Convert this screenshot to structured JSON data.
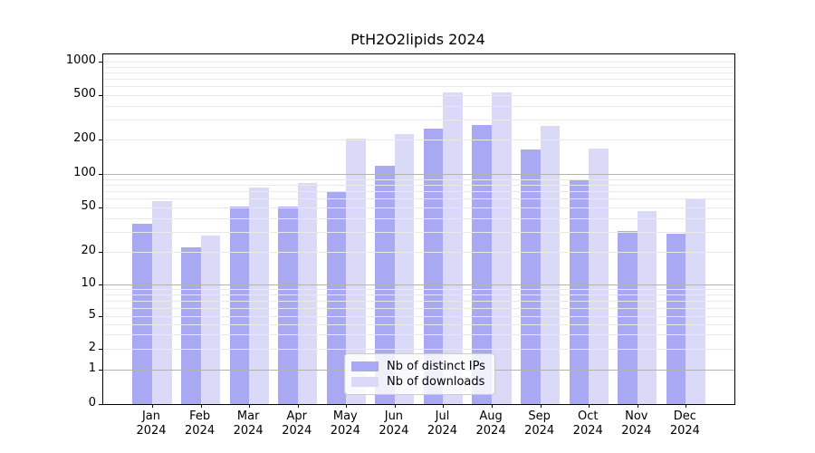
{
  "chart_data": {
    "type": "bar",
    "title": "PtH2O2lipids 2024",
    "categories": [
      "Jan",
      "Feb",
      "Mar",
      "Apr",
      "May",
      "Jun",
      "Jul",
      "Aug",
      "Sep",
      "Oct",
      "Nov",
      "Dec"
    ],
    "category_year": "2024",
    "series": [
      {
        "name": "Nb of distinct IPs",
        "color": "#a9a9f3",
        "values": [
          36,
          22,
          51,
          51,
          70,
          118,
          250,
          270,
          165,
          88,
          31,
          29
        ]
      },
      {
        "name": "Nb of downloads",
        "color": "#dadaf8",
        "values": [
          57,
          28,
          75,
          83,
          205,
          225,
          530,
          530,
          265,
          168,
          46,
          60
        ]
      }
    ],
    "xlabel": "",
    "ylabel": "",
    "yscale": "symlog",
    "ylim": [
      0,
      1150
    ],
    "yticks": [
      0,
      1,
      2,
      5,
      10,
      20,
      50,
      100,
      200,
      500,
      1000
    ],
    "grid": true,
    "grid_major_levels": [
      1,
      10,
      100
    ],
    "legend_position": "lower-center",
    "colors": {
      "distinct_ips_bar": "#a9a9f3",
      "downloads_bar": "#dadaf8",
      "major_gridline": "#b2b2b2",
      "minor_gridline": "#e9e9e9",
      "axis": "#000000",
      "legend_border": "#cccccc"
    }
  }
}
